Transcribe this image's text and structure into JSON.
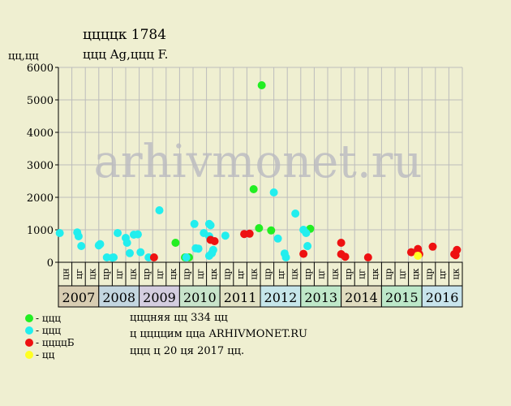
{
  "title": "ццццк 1784",
  "subtitle": "ццц Ag,ццц F.",
  "y_unit": "цц,цц",
  "watermark": "arhivmonet.ru",
  "footer": {
    "line1": "цццняя цц 334 цц",
    "line2": "ц ццццим ццa ARHIVMONET.RU",
    "line3": "ццц ц 20 ця 2017 цц."
  },
  "legend": [
    {
      "label": "- ццц",
      "color": "#22ee22"
    },
    {
      "label": "- ццц",
      "color": "#22eeee"
    },
    {
      "label": "- ццццБ",
      "color": "#ee1111"
    },
    {
      "label": "- цц",
      "color": "#ffff22"
    }
  ],
  "colors": {
    "background": "#efefd1",
    "grid": "#bcbcbc",
    "axis": "#000000"
  },
  "chart_data": {
    "type": "scatter",
    "ylabel": "цц,цц",
    "ylim": [
      0,
      6000
    ],
    "yticks": [
      0,
      1000,
      2000,
      3000,
      4000,
      5000,
      6000
    ],
    "grid": true,
    "months": [
      "цн",
      "цг",
      "цк",
      "цр",
      "цг",
      "цк",
      "цр",
      "цг",
      "цк",
      "цр",
      "цг",
      "цк",
      "цр",
      "цг",
      "цк",
      "цр",
      "цг",
      "цк",
      "цр",
      "цг",
      "цк",
      "цр",
      "цг",
      "цк",
      "цр",
      "цг",
      "цк",
      "цр",
      "цг",
      "цк"
    ],
    "years": [
      {
        "label": "2007",
        "start": 0,
        "span": 3,
        "color": "#d8cdb2"
      },
      {
        "label": "2008",
        "start": 3,
        "span": 3,
        "color": "#c3d6e0"
      },
      {
        "label": "2009",
        "start": 6,
        "span": 3,
        "color": "#d4cde0"
      },
      {
        "label": "2010",
        "start": 9,
        "span": 3,
        "color": "#c8e4cb"
      },
      {
        "label": "2011",
        "start": 12,
        "span": 3,
        "color": "#e2e2c4"
      },
      {
        "label": "2012",
        "start": 15,
        "span": 3,
        "color": "#c6e6ea"
      },
      {
        "label": "2013",
        "start": 18,
        "span": 3,
        "color": "#bfe8c9"
      },
      {
        "label": "2014",
        "start": 21,
        "span": 3,
        "color": "#e0dcc0"
      },
      {
        "label": "2015",
        "start": 24,
        "span": 3,
        "color": "#bde8c9"
      },
      {
        "label": "2016",
        "start": 27,
        "span": 3,
        "color": "#c8e4ec"
      }
    ],
    "series": [
      {
        "color": "#22ee22",
        "points": [
          [
            8.7,
            600
          ],
          [
            9.4,
            150
          ],
          [
            9.7,
            150
          ],
          [
            14.5,
            2250
          ],
          [
            14.9,
            1050
          ],
          [
            15.1,
            5450
          ],
          [
            15.8,
            980
          ],
          [
            18.7,
            1030
          ]
        ]
      },
      {
        "color": "#22eeee",
        "points": [
          [
            0.1,
            900
          ],
          [
            1.4,
            920
          ],
          [
            1.5,
            800
          ],
          [
            1.7,
            500
          ],
          [
            3.0,
            520
          ],
          [
            3.1,
            560
          ],
          [
            3.6,
            150
          ],
          [
            4.0,
            140
          ],
          [
            4.1,
            150
          ],
          [
            4.4,
            900
          ],
          [
            5.0,
            750
          ],
          [
            5.1,
            600
          ],
          [
            5.3,
            280
          ],
          [
            5.6,
            850
          ],
          [
            5.9,
            860
          ],
          [
            6.1,
            310
          ],
          [
            6.7,
            150
          ],
          [
            7.5,
            1600
          ],
          [
            9.5,
            150
          ],
          [
            10.1,
            1180
          ],
          [
            10.2,
            430
          ],
          [
            10.4,
            420
          ],
          [
            10.8,
            900
          ],
          [
            11.2,
            800
          ],
          [
            11.2,
            1180
          ],
          [
            11.3,
            1140
          ],
          [
            11.3,
            700
          ],
          [
            11.2,
            200
          ],
          [
            11.4,
            280
          ],
          [
            11.5,
            380
          ],
          [
            12.4,
            820
          ],
          [
            16.0,
            2150
          ],
          [
            16.3,
            730
          ],
          [
            16.8,
            270
          ],
          [
            16.9,
            150
          ],
          [
            17.6,
            1500
          ],
          [
            18.2,
            1000
          ],
          [
            18.4,
            900
          ],
          [
            18.5,
            500
          ]
        ]
      },
      {
        "color": "#ee1111",
        "points": [
          [
            7.1,
            150
          ],
          [
            11.3,
            690
          ],
          [
            11.6,
            650
          ],
          [
            13.8,
            870
          ],
          [
            14.2,
            880
          ],
          [
            18.2,
            260
          ],
          [
            21.0,
            600
          ],
          [
            21.0,
            250
          ],
          [
            21.3,
            170
          ],
          [
            23.0,
            150
          ],
          [
            26.2,
            310
          ],
          [
            26.7,
            410
          ],
          [
            26.8,
            250
          ],
          [
            27.8,
            480
          ],
          [
            29.4,
            250
          ],
          [
            29.5,
            220
          ],
          [
            29.6,
            380
          ]
        ]
      },
      {
        "color": "#ffff22",
        "points": [
          [
            26.7,
            200
          ]
        ]
      }
    ]
  }
}
